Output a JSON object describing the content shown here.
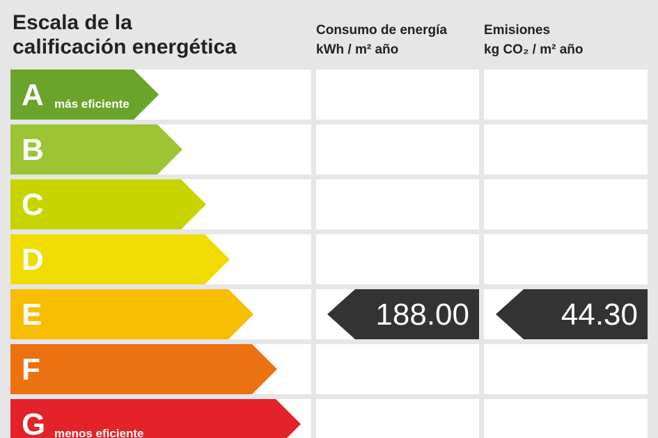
{
  "header": {
    "title_lines": [
      "Escala de la",
      "calificación energética"
    ],
    "columns": [
      {
        "title": "Consumo de energía",
        "unit": "kWh / m² año"
      },
      {
        "title": "Emisiones",
        "unit": "kg CO₂ / m² año"
      }
    ]
  },
  "ratings": [
    {
      "letter": "A",
      "label": "más eficiente",
      "color": "#6aa42b"
    },
    {
      "letter": "B",
      "color": "#9cc433"
    },
    {
      "letter": "C",
      "color": "#c8d400"
    },
    {
      "letter": "D",
      "color": "#f0dc00"
    },
    {
      "letter": "E",
      "color": "#f7bd00"
    },
    {
      "letter": "F",
      "color": "#ec7110"
    },
    {
      "letter": "G",
      "label": "menos eficiente",
      "color": "#e3222a"
    }
  ],
  "results": [
    {
      "value": "188.00",
      "rating": "E"
    },
    {
      "value": "44.30",
      "rating": "E"
    }
  ]
}
